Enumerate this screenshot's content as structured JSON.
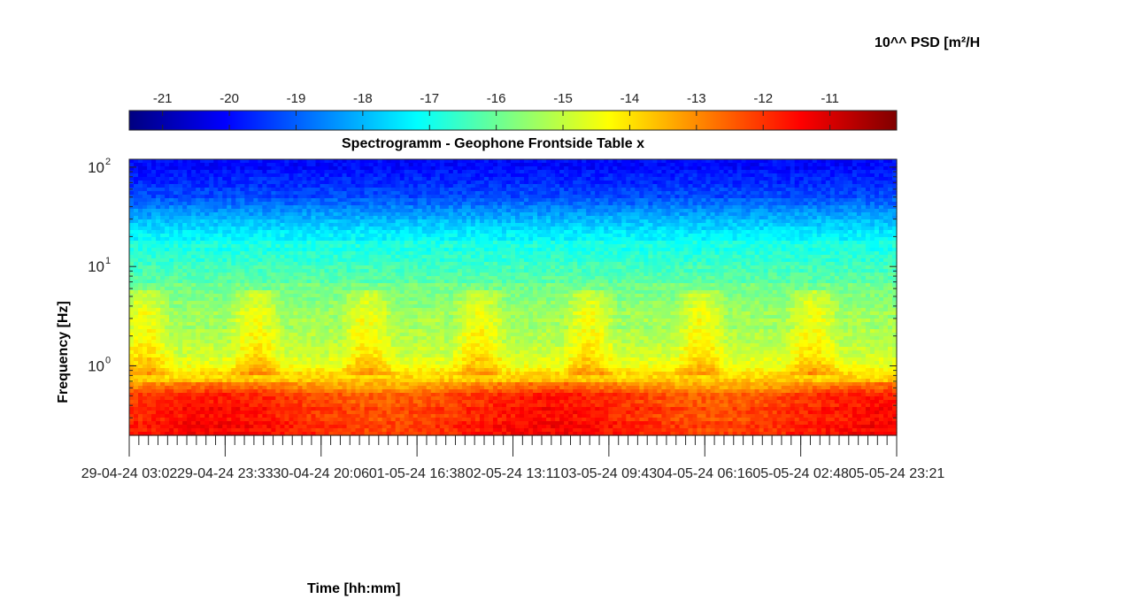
{
  "chart_data": {
    "type": "heatmap",
    "title": "Spectrogramm - Geophone Frontside Table x",
    "xlabel": "Time [hh:mm]",
    "ylabel": "Frequency [Hz]",
    "y_scale": "log",
    "ylim_hz": [
      0.2,
      120
    ],
    "y_tick_values": [
      1,
      10,
      100
    ],
    "y_tick_labels": [
      "10",
      "10",
      "10"
    ],
    "y_tick_exponents": [
      "0",
      "1",
      "2"
    ],
    "x_tick_labels": [
      "29-04-24 03:02",
      "29-04-24 23:33",
      "30-04-24 20:06",
      "01-05-24 16:38",
      "02-05-24 13:11",
      "03-05-24 09:43",
      "04-05-24 06:16",
      "05-05-24 02:48",
      "05-05-24 23:21"
    ],
    "colorbar": {
      "label": "10^^ PSD [m²/H",
      "range": [
        -21.5,
        -10
      ],
      "tick_values": [
        -21,
        -20,
        -19,
        -18,
        -17,
        -16,
        -15,
        -14,
        -13,
        -12,
        -11
      ],
      "tick_labels": [
        "-21",
        "-20",
        "-19",
        "-18",
        "-17",
        "-16",
        "-15",
        "-14",
        "-13",
        "-12",
        "-11"
      ],
      "colormap": "jet",
      "placement": "top"
    },
    "approx_psd_profile": {
      "frequency_hz": [
        0.2,
        0.5,
        0.7,
        1.0,
        2.0,
        5.0,
        10.0,
        20.0,
        50.0,
        100.0
      ],
      "log10_psd": [
        -12.0,
        -12.3,
        -13.5,
        -14.5,
        -15.2,
        -15.7,
        -16.4,
        -17.2,
        -19.2,
        -20.0
      ]
    }
  },
  "colors": {
    "axis": "#262626",
    "background": "#ffffff"
  }
}
